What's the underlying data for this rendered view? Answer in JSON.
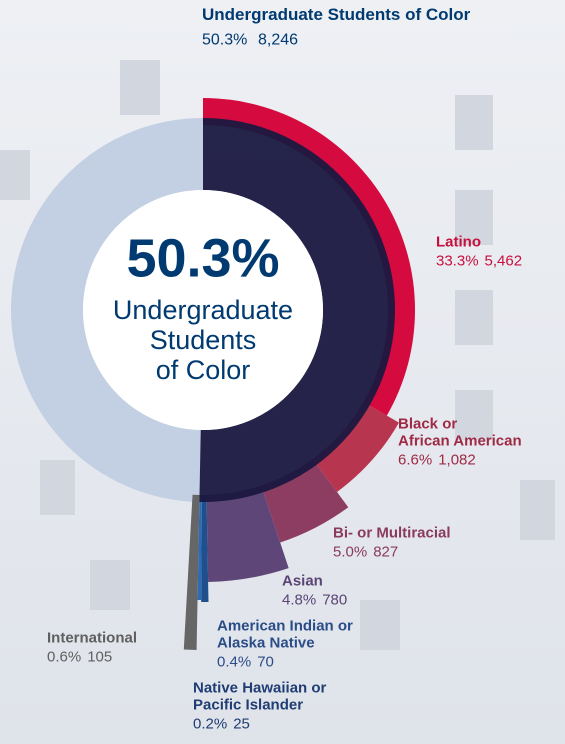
{
  "chart_data": {
    "type": "radial-bar",
    "title": "Undergraduate Students of Color",
    "total": {
      "percent": 50.3,
      "percent_label": "50.3%",
      "count": 8246,
      "count_label": "8,246"
    },
    "center_lines": [
      "Undergraduate",
      "Students",
      "of Color"
    ],
    "total_color": "#1a1840",
    "rest_color": "#c3cfe2",
    "series": [
      {
        "name_lines": [
          "Latino"
        ],
        "percent": 33.3,
        "percent_label": "33.3%",
        "count": 5462,
        "count_label": "5,462",
        "color": "#d50a3f"
      },
      {
        "name_lines": [
          "Black or",
          "African American"
        ],
        "percent": 6.6,
        "percent_label": "6.6%",
        "count": 1082,
        "count_label": "1,082",
        "color": "#b8354f"
      },
      {
        "name_lines": [
          "Bi- or Multiracial"
        ],
        "percent": 5.0,
        "percent_label": "5.0%",
        "count": 827,
        "color": "#8e3d62"
      },
      {
        "name_lines": [
          "Asian"
        ],
        "percent": 4.8,
        "percent_label": "4.8%",
        "count": 780,
        "color": "#5f4678"
      },
      {
        "name_lines": [
          "American Indian or",
          "Alaska Native"
        ],
        "percent": 0.4,
        "percent_label": "0.4%",
        "count": 70,
        "color": "#1f4f8c"
      },
      {
        "name_lines": [
          "Native Hawaiian or",
          "Pacific Islander"
        ],
        "percent": 0.2,
        "percent_label": "0.2%",
        "count": 25,
        "color": "#2e6bb4"
      },
      {
        "name_lines": [
          "International"
        ],
        "percent": 0.6,
        "percent_label": "0.6%",
        "count": 105,
        "color": "#666666"
      }
    ]
  }
}
